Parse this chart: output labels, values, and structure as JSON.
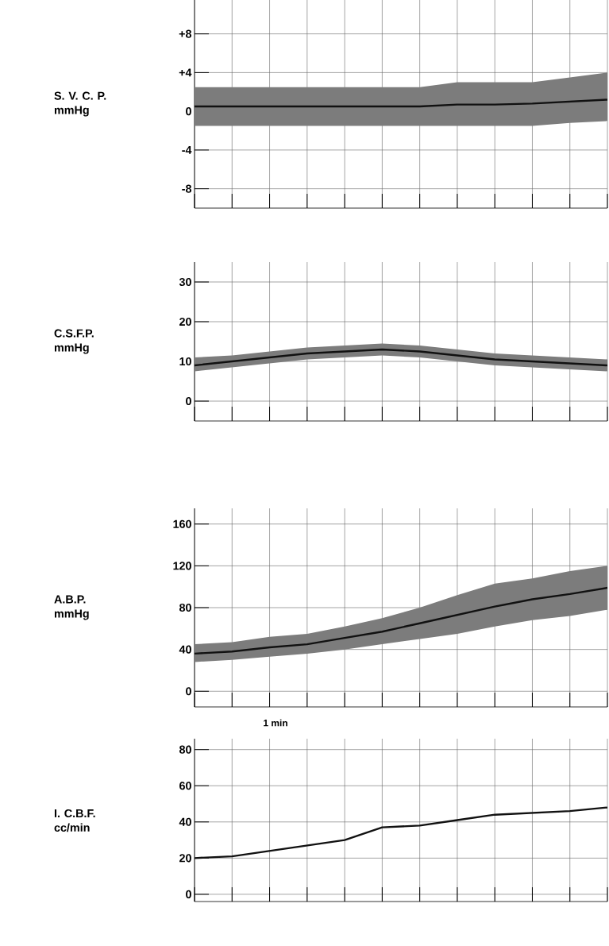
{
  "chart_data": [
    {
      "type": "line",
      "ylabel": "S. V. C. P. mmHg",
      "categories": [
        null,
        null,
        null,
        null,
        null,
        null,
        null,
        null,
        null,
        null,
        null,
        null
      ],
      "series": [
        {
          "color": "#111111",
          "values": [
            0.5,
            0.5,
            0.5,
            0.5,
            0.5,
            0.5,
            0.5,
            0.7,
            0.7,
            0.8,
            1,
            1.2
          ],
          "lower": [
            -1.5,
            -1.5,
            -1.5,
            -1.5,
            -1.5,
            -1.5,
            -1.5,
            -1.5,
            -1.5,
            -1.5,
            -1.2,
            -1
          ],
          "upper": [
            2.5,
            2.5,
            2.5,
            2.5,
            2.5,
            2.5,
            2.5,
            3,
            3,
            3,
            3.5,
            4
          ]
        }
      ],
      "ylim": [
        -10,
        11.5
      ],
      "yticks": [
        {
          "value": 8,
          "label": "+8"
        },
        {
          "value": 4,
          "label": "+4"
        },
        0,
        -4,
        -8
      ],
      "grid": true,
      "tick_labels": "y"
    },
    {
      "type": "line",
      "ylabel": "C.S.F.P. mmHg",
      "categories": [
        null,
        null,
        null,
        null,
        null,
        null,
        null,
        null,
        null,
        null,
        null,
        null
      ],
      "series": [
        {
          "color": "#111111",
          "values": [
            9,
            10,
            11,
            12,
            12.5,
            13,
            12.5,
            11.5,
            10.5,
            10,
            9.5,
            9
          ],
          "lower": [
            7.5,
            8.5,
            9.5,
            10.5,
            11,
            11.5,
            11,
            10,
            9,
            8.5,
            8,
            7.5
          ],
          "upper": [
            11,
            11.5,
            12.5,
            13.5,
            14,
            14.5,
            14,
            13,
            12,
            11.5,
            11,
            10.5
          ]
        }
      ],
      "ylim": [
        -5,
        35
      ],
      "yticks": [
        0,
        10,
        20,
        30
      ],
      "grid": true,
      "tick_labels": "y"
    },
    {
      "type": "line",
      "ylabel": "A.B.P. mmHg",
      "categories": [
        null,
        null,
        null,
        null,
        null,
        null,
        null,
        null,
        null,
        null,
        null,
        null
      ],
      "series": [
        {
          "color": "#111111",
          "values": [
            36,
            38,
            42,
            45,
            51,
            57,
            65,
            73,
            81,
            88,
            93,
            99
          ],
          "lower": [
            28,
            30,
            33,
            36,
            40,
            45,
            50,
            55,
            62,
            68,
            72,
            78
          ],
          "upper": [
            45,
            47,
            52,
            55,
            62,
            70,
            80,
            92,
            103,
            108,
            115,
            120
          ]
        }
      ],
      "ylim": [
        -15,
        175
      ],
      "yticks": [
        0,
        40,
        80,
        120,
        160
      ],
      "grid": true,
      "tick_labels": "y",
      "annotations": [
        "1 min"
      ]
    },
    {
      "type": "line",
      "ylabel": "I. C.B.F. cc/min",
      "categories": [
        null,
        null,
        null,
        null,
        null,
        null,
        null,
        null,
        null,
        null,
        null,
        null
      ],
      "series": [
        {
          "color": "#111111",
          "values": [
            20,
            21,
            24,
            27,
            30,
            37,
            38,
            41,
            44,
            45,
            46,
            48
          ]
        }
      ],
      "ylim": [
        -4,
        86
      ],
      "yticks": [
        0,
        20,
        40,
        60,
        80
      ],
      "grid": true,
      "tick_labels": "y"
    }
  ]
}
